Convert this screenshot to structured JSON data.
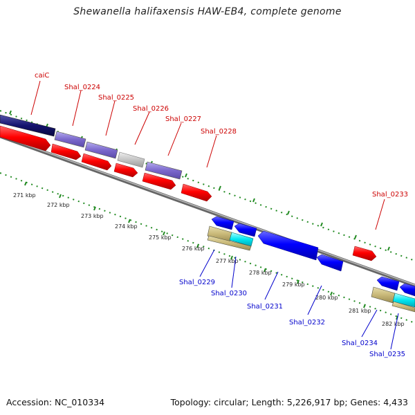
{
  "title": "Shewanella halifaxensis HAW-EB4, complete genome",
  "footer": {
    "accession": "Accession: NC_010334",
    "summary": "Topology: circular; Length: 5,226,917 bp; Genes: 4,433"
  },
  "colors": {
    "backbone": "#888888",
    "forward_cds": "#ff0000",
    "reverse_cds": "#0000ff",
    "label_top": "#cc0000",
    "label_bottom": "#0000cc",
    "scale_ticks": "#228b22"
  },
  "kbp_labels": [
    "271 kbp",
    "272 kbp",
    "273 kbp",
    "274 kbp",
    "275 kbp",
    "276 kbp",
    "277 kbp",
    "278 kbp",
    "279 kbp",
    "280 kbp",
    "281 kbp",
    "282 kbp"
  ],
  "top_gene_labels": [
    "caiC",
    "Shal_0224",
    "Shal_0225",
    "Shal_0226",
    "Shal_0227",
    "Shal_0228",
    "Shal_0233"
  ],
  "bottom_gene_labels": [
    "Shal_0229",
    "Shal_0230",
    "Shal_0231",
    "Shal_0232",
    "Shal_0234",
    "Shal_0235"
  ]
}
